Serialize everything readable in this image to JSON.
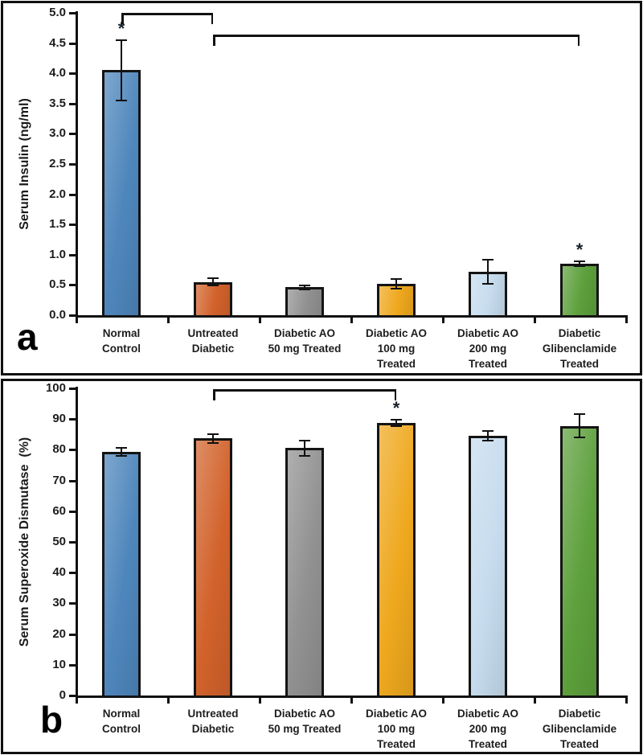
{
  "colors": {
    "axis": "#111111",
    "bar_border": "#141414",
    "text": "#1d1d1d",
    "sig_marker_color": "#18222c"
  },
  "chart_data": [
    {
      "type": "bar",
      "panel_letter": "a",
      "title": "",
      "xlabel": "",
      "ylabel": "Serum Insulin (ng/ml)",
      "ylim": [
        0,
        5.0
      ],
      "grid": false,
      "legend": null,
      "ytick_values": [
        0,
        0.5,
        1.0,
        1.5,
        2.0,
        2.5,
        3.0,
        3.5,
        4.0,
        4.5,
        5.0
      ],
      "ytick_labels": [
        "0.0",
        "0.5",
        "1.0",
        "1.5",
        "2.0",
        "2.5",
        "3.0",
        "3.5",
        "4.0",
        "4.5",
        "5.0"
      ],
      "categories": [
        "Normal\nControl",
        "Untreated\nDiabetic",
        "Diabetic AO\n50 mg Treated",
        "Diabetic AO\n100 mg\nTreated",
        "Diabetic AO\n200 mg\nTreated",
        "Diabetic\nGlibenclamide\nTreated"
      ],
      "values": [
        4.05,
        0.55,
        0.46,
        0.52,
        0.72,
        0.85
      ],
      "errors": [
        0.5,
        0.06,
        0.03,
        0.08,
        0.2,
        0.04
      ],
      "significance_markers": [
        "*",
        null,
        null,
        null,
        null,
        "*"
      ],
      "brackets": [
        {
          "from": 0,
          "to": 1,
          "y": 5.0
        },
        {
          "from": 1,
          "to": 5,
          "y": 4.64
        }
      ],
      "bar_colors": [
        "#4e86bc",
        "#d2622b",
        "#919191",
        "#efa81e",
        "#c6dcee",
        "#5da03c"
      ]
    },
    {
      "type": "bar",
      "panel_letter": "b",
      "title": "",
      "xlabel": "",
      "ylabel": "Serum Superoxide Dismutase  (%)",
      "ylim": [
        0,
        100
      ],
      "grid": false,
      "legend": null,
      "ytick_values": [
        0,
        10,
        20,
        30,
        40,
        50,
        60,
        70,
        80,
        90,
        100
      ],
      "ytick_labels": [
        "0",
        "10",
        "20",
        "30",
        "40",
        "50",
        "60",
        "70",
        "80",
        "90",
        "100"
      ],
      "categories": [
        "Normal\nControl",
        "Untreated\nDiabetic",
        "Diabetic AO\n50 mg Treated",
        "Diabetic AO\n100 mg\nTreated",
        "Diabetic AO\n200 mg\nTreated",
        "Diabetic\nGlibenclamide\nTreated"
      ],
      "values": [
        79.3,
        83.7,
        80.6,
        88.8,
        84.6,
        87.8
      ],
      "errors": [
        1.3,
        1.5,
        2.5,
        1.0,
        1.5,
        3.8
      ],
      "significance_markers": [
        null,
        null,
        null,
        "*",
        null,
        null
      ],
      "brackets": [
        {
          "from": 1,
          "to": 3,
          "y": 99.7
        }
      ],
      "bar_colors": [
        "#4e86bc",
        "#d2622b",
        "#919191",
        "#efa81e",
        "#c6dcee",
        "#5da03c"
      ]
    }
  ]
}
